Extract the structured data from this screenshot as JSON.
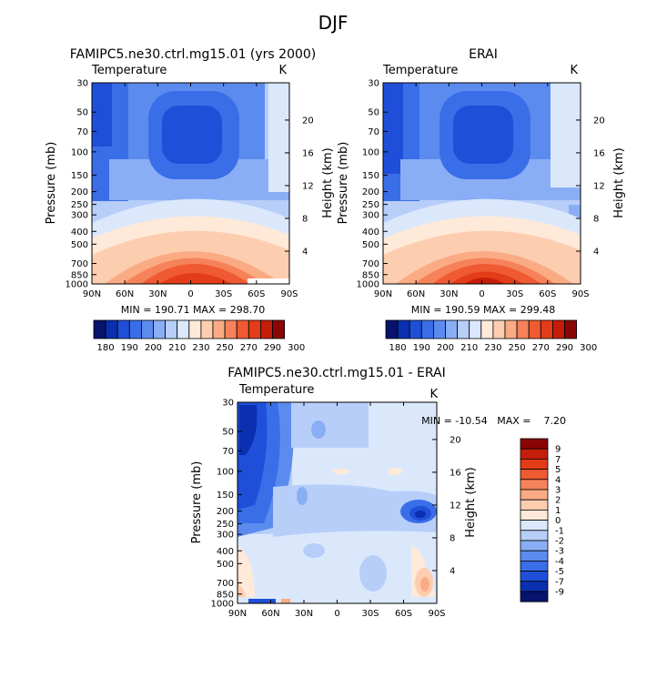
{
  "figure_title": "DJF",
  "colors": {
    "temp_levels": [
      "#08136e",
      "#0a2fb0",
      "#1f4fd8",
      "#3a6ee8",
      "#5c8bef",
      "#8aaef5",
      "#b7cef9",
      "#dbe8fc",
      "#ffe9d8",
      "#fdcdb0",
      "#fbab84",
      "#f6825a",
      "#ef5a33",
      "#e33c18",
      "#c41e0a",
      "#8a0505"
    ],
    "diff_levels": [
      "#08136e",
      "#0a2fb0",
      "#1f4fd8",
      "#3a6ee8",
      "#5c8bef",
      "#8aaef5",
      "#b7cef9",
      "#dbe8fc",
      "#ffe9d8",
      "#fdcdb0",
      "#fbab84",
      "#f6825a",
      "#ef5a33",
      "#e33c18",
      "#c41e0a",
      "#8a0505"
    ]
  },
  "panels": [
    {
      "title": "FAMIPC5.ne30.ctrl.mg15.01 (yrs 2000)",
      "subtitle": "Temperature",
      "units": "K",
      "ylabel": "Pressure (mb)",
      "y2label": "Height (km)",
      "stats": "MIN = 190.71   MAX = 298.70"
    },
    {
      "title": "ERAI",
      "subtitle": "Temperature",
      "units": "K",
      "ylabel": "Pressure (mb)",
      "y2label": "Height (km)",
      "stats": "MIN = 190.59   MAX = 299.48"
    },
    {
      "title": "FAMIPC5.ne30.ctrl.mg15.01 - ERAI",
      "subtitle": "Temperature",
      "units": "K",
      "ylabel": "Pressure (mb)",
      "y2label": "Height (km)",
      "stats": "MIN = -10.54   MAX =    7.20"
    }
  ],
  "temp_colorbar_labels": [
    "180",
    "190",
    "200",
    "210",
    "230",
    "250",
    "270",
    "290",
    "300"
  ],
  "diff_colorbar_labels": [
    "9",
    "7",
    "5",
    "4",
    "3",
    "2",
    "1",
    "0",
    "-1",
    "-2",
    "-3",
    "-4",
    "-5",
    "-7",
    "-9"
  ],
  "chart_data": [
    {
      "type": "heatmap",
      "title": "FAMIPC5.ne30.ctrl.mg15.01 (yrs 2000)",
      "subtitle": "Temperature",
      "units": "K",
      "xlabel": "",
      "ylabel": "Pressure (mb)",
      "y2label": "Height (km)",
      "x_ticks": [
        "90N",
        "60N",
        "30N",
        "0",
        "30S",
        "60S",
        "90S"
      ],
      "y_ticks": [
        "30",
        "50",
        "70",
        "100",
        "150",
        "200",
        "250",
        "300",
        "400",
        "500",
        "700",
        "850",
        "1000"
      ],
      "y2_ticks": [
        "20",
        "16",
        "12",
        "8",
        "4"
      ],
      "min": 190.71,
      "max": 298.7,
      "color_levels": [
        180,
        190,
        200,
        210,
        230,
        250,
        270,
        290,
        300
      ],
      "grid": false
    },
    {
      "type": "heatmap",
      "title": "ERAI",
      "subtitle": "Temperature",
      "units": "K",
      "xlabel": "",
      "ylabel": "Pressure (mb)",
      "y2label": "Height (km)",
      "x_ticks": [
        "90N",
        "60N",
        "30N",
        "0",
        "30S",
        "60S",
        "90S"
      ],
      "y_ticks": [
        "30",
        "50",
        "70",
        "100",
        "150",
        "200",
        "250",
        "300",
        "400",
        "500",
        "700",
        "850",
        "1000"
      ],
      "y2_ticks": [
        "20",
        "16",
        "12",
        "8",
        "4"
      ],
      "min": 190.59,
      "max": 299.48,
      "color_levels": [
        180,
        190,
        200,
        210,
        230,
        250,
        270,
        290,
        300
      ],
      "grid": false
    },
    {
      "type": "heatmap",
      "title": "FAMIPC5.ne30.ctrl.mg15.01 - ERAI",
      "subtitle": "Temperature",
      "units": "K",
      "xlabel": "",
      "ylabel": "Pressure (mb)",
      "y2label": "Height (km)",
      "x_ticks": [
        "90N",
        "60N",
        "30N",
        "0",
        "30S",
        "60S",
        "90S"
      ],
      "y_ticks": [
        "30",
        "50",
        "70",
        "100",
        "150",
        "200",
        "250",
        "300",
        "400",
        "500",
        "700",
        "850",
        "1000"
      ],
      "y2_ticks": [
        "20",
        "16",
        "12",
        "8",
        "4"
      ],
      "min": -10.54,
      "max": 7.2,
      "color_levels": [
        9,
        7,
        5,
        4,
        3,
        2,
        1,
        0,
        -1,
        -2,
        -3,
        -4,
        -5,
        -7,
        -9
      ],
      "grid": false
    }
  ]
}
